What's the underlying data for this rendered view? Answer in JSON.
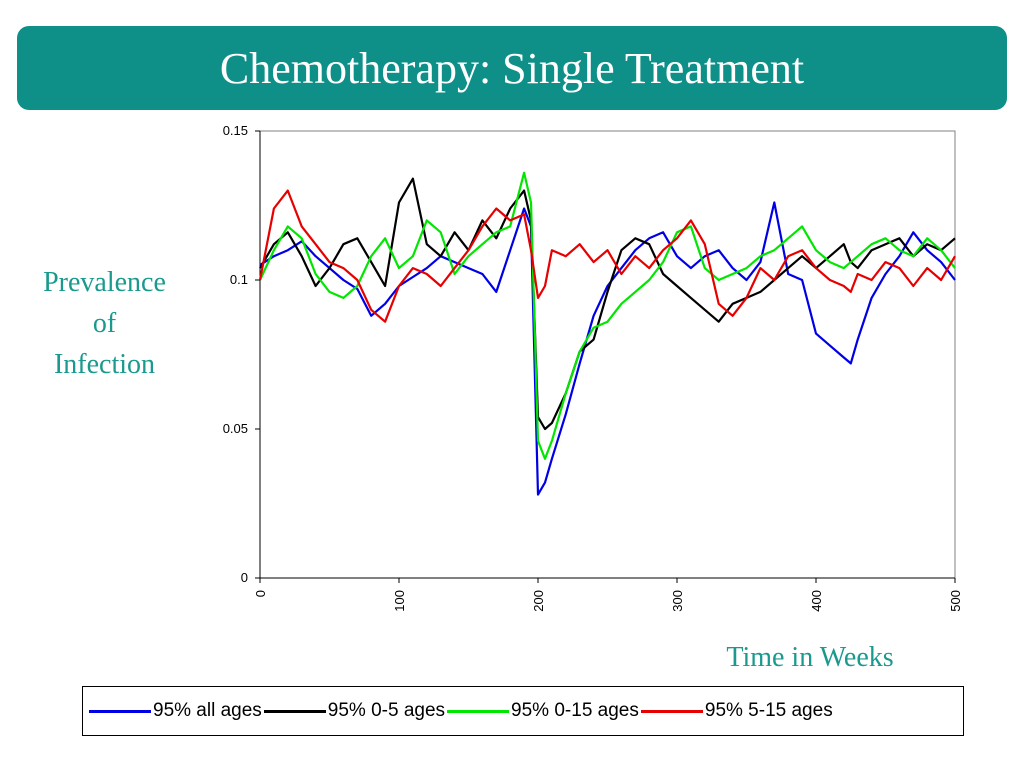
{
  "slide": {
    "title": "Chemotherapy: Single Treatment",
    "ylabel_lines": [
      "Prevalence",
      "of",
      "Infection"
    ],
    "xlabel": "Time in Weeks"
  },
  "colors": {
    "title_bar": "#0e9089",
    "axis_label": "#1a9a8e",
    "blue": "#0000e6",
    "black": "#000000",
    "green": "#00e600",
    "red": "#e60000"
  },
  "chart_data": {
    "type": "line",
    "xlabel": "Time in Weeks",
    "ylabel": "Prevalence of Infection",
    "xlim": [
      0,
      500
    ],
    "ylim": [
      0,
      0.15
    ],
    "xticks": [
      "0",
      "100",
      "200",
      "300",
      "400",
      "500"
    ],
    "yticks": [
      "0",
      "0.05",
      "0.1",
      "0.15"
    ],
    "x": [
      0,
      10,
      20,
      30,
      40,
      50,
      60,
      70,
      80,
      90,
      100,
      110,
      120,
      130,
      140,
      150,
      160,
      170,
      180,
      190,
      195,
      200,
      205,
      210,
      220,
      230,
      240,
      250,
      260,
      270,
      280,
      290,
      300,
      310,
      320,
      330,
      340,
      350,
      360,
      370,
      380,
      390,
      400,
      410,
      420,
      425,
      430,
      440,
      450,
      460,
      470,
      480,
      490,
      500
    ],
    "series": [
      {
        "name": "95% all ages",
        "color": "#0000e6",
        "values": [
          0.105,
          0.108,
          0.11,
          0.113,
          0.108,
          0.104,
          0.1,
          0.097,
          0.088,
          0.092,
          0.098,
          0.101,
          0.104,
          0.108,
          0.106,
          0.104,
          0.102,
          0.096,
          0.11,
          0.124,
          0.118,
          0.028,
          0.032,
          0.04,
          0.055,
          0.072,
          0.088,
          0.098,
          0.104,
          0.11,
          0.114,
          0.116,
          0.108,
          0.104,
          0.108,
          0.11,
          0.104,
          0.1,
          0.106,
          0.126,
          0.102,
          0.1,
          0.082,
          0.078,
          0.074,
          0.072,
          0.08,
          0.094,
          0.102,
          0.108,
          0.116,
          0.11,
          0.106,
          0.1
        ]
      },
      {
        "name": "95% 0-5 ages",
        "color": "#000000",
        "values": [
          0.104,
          0.112,
          0.116,
          0.108,
          0.098,
          0.104,
          0.112,
          0.114,
          0.106,
          0.098,
          0.126,
          0.134,
          0.112,
          0.108,
          0.116,
          0.11,
          0.12,
          0.114,
          0.124,
          0.13,
          0.12,
          0.054,
          0.05,
          0.052,
          0.062,
          0.076,
          0.08,
          0.096,
          0.11,
          0.114,
          0.112,
          0.102,
          0.098,
          0.094,
          0.09,
          0.086,
          0.092,
          0.094,
          0.096,
          0.1,
          0.104,
          0.108,
          0.104,
          0.108,
          0.112,
          0.106,
          0.104,
          0.11,
          0.112,
          0.114,
          0.108,
          0.112,
          0.11,
          0.114
        ]
      },
      {
        "name": "95% 0-15 ages",
        "color": "#00e600",
        "values": [
          0.1,
          0.11,
          0.118,
          0.114,
          0.102,
          0.096,
          0.094,
          0.098,
          0.108,
          0.114,
          0.104,
          0.108,
          0.12,
          0.116,
          0.102,
          0.108,
          0.112,
          0.116,
          0.118,
          0.136,
          0.126,
          0.046,
          0.04,
          0.046,
          0.062,
          0.076,
          0.084,
          0.086,
          0.092,
          0.096,
          0.1,
          0.106,
          0.116,
          0.118,
          0.104,
          0.1,
          0.102,
          0.104,
          0.108,
          0.11,
          0.114,
          0.118,
          0.11,
          0.106,
          0.104,
          0.106,
          0.108,
          0.112,
          0.114,
          0.11,
          0.108,
          0.114,
          0.11,
          0.104
        ]
      },
      {
        "name": "95% 5-15 ages",
        "color": "#e60000",
        "values": [
          0.1,
          0.124,
          0.13,
          0.118,
          0.112,
          0.106,
          0.104,
          0.1,
          0.09,
          0.086,
          0.098,
          0.104,
          0.102,
          0.098,
          0.104,
          0.11,
          0.118,
          0.124,
          0.12,
          0.122,
          0.11,
          0.094,
          0.098,
          0.11,
          0.108,
          0.112,
          0.106,
          0.11,
          0.102,
          0.108,
          0.104,
          0.11,
          0.114,
          0.12,
          0.112,
          0.092,
          0.088,
          0.094,
          0.104,
          0.1,
          0.108,
          0.11,
          0.104,
          0.1,
          0.098,
          0.096,
          0.102,
          0.1,
          0.106,
          0.104,
          0.098,
          0.104,
          0.1,
          0.108
        ]
      }
    ],
    "legend": {
      "placement": "bottom",
      "entries": [
        "95% all ages",
        "95% 0-5 ages",
        "95% 0-15 ages",
        "95% 5-15 ages"
      ]
    }
  }
}
